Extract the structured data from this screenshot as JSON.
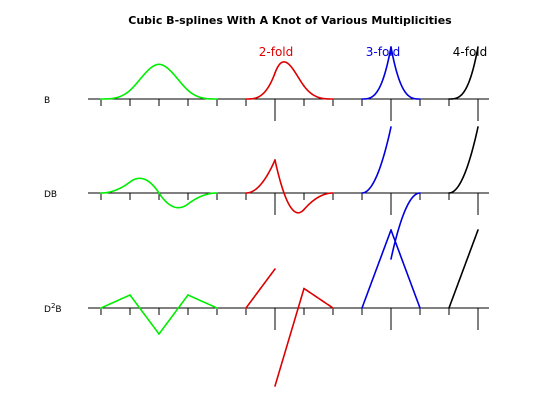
{
  "chart_data": {
    "type": "line",
    "title": "Cubic B-splines With A Knot of Various Multiplicities",
    "grid": false,
    "column_labels": [
      "2-fold",
      "3-fold",
      "4-fold"
    ],
    "row_labels": [
      {
        "text": "B",
        "superscript": ""
      },
      {
        "text": "DB",
        "superscript": ""
      },
      {
        "text": "D",
        "superscript": "2",
        "suffix": "B"
      }
    ],
    "series": [
      {
        "multiplicity": 1,
        "color": "#00ee00",
        "knots": [
          0,
          1,
          2,
          3,
          4
        ]
      },
      {
        "multiplicity": 2,
        "color": "#dd0000",
        "knots": [
          0,
          1,
          1,
          2,
          3
        ]
      },
      {
        "multiplicity": 3,
        "color": "#0000dd",
        "knots": [
          0,
          1,
          1,
          1,
          2
        ]
      },
      {
        "multiplicity": 4,
        "color": "#000000",
        "knots": [
          0,
          1,
          1,
          1,
          1
        ]
      }
    ],
    "derivatives": [
      0,
      1,
      2
    ]
  }
}
